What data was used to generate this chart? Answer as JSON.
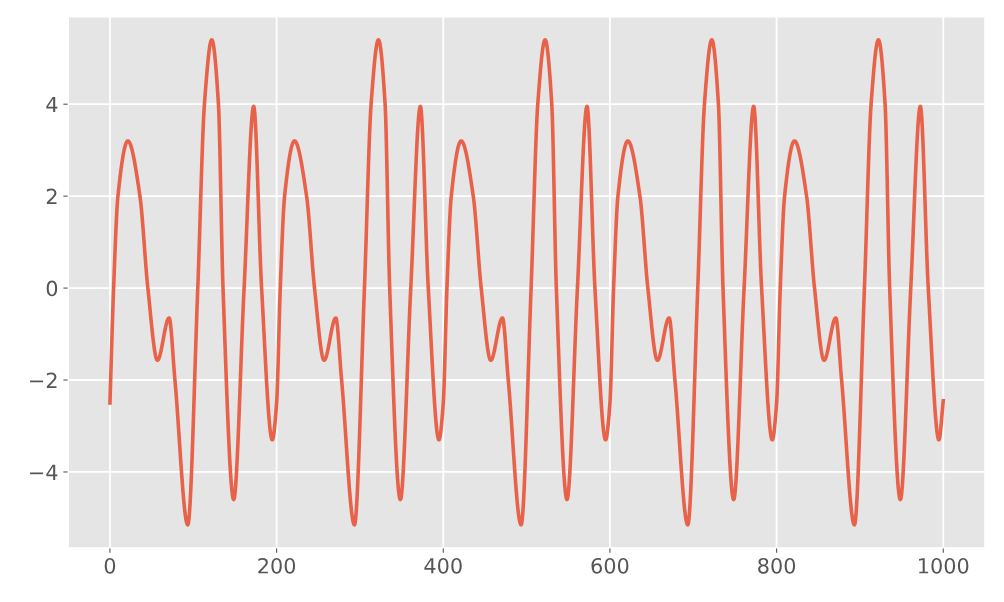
{
  "chart_data": {
    "type": "line",
    "x": [
      0,
      4.4,
      9.6,
      21.5,
      36,
      45.5,
      57,
      71,
      78,
      93.4,
      105.4,
      113.4,
      122.2,
      130.2,
      135.7,
      148.5,
      161,
      172.5,
      182,
      194.8,
      200,
      204.4,
      209.6,
      221.5,
      236,
      245.5,
      257,
      271,
      278,
      293.4,
      305.4,
      313.4,
      322.2,
      330.2,
      335.7,
      348.5,
      361,
      372.5,
      382,
      394.8,
      400,
      404.4,
      409.6,
      421.5,
      436,
      445.5,
      457,
      471,
      478,
      493.4,
      505.4,
      513.4,
      522.2,
      530.2,
      535.7,
      548.5,
      561,
      572.5,
      582,
      594.8,
      600,
      604.4,
      609.6,
      621.5,
      636,
      645.5,
      657,
      671,
      678,
      693.4,
      705.4,
      713.4,
      722.2,
      730.2,
      735.7,
      748.5,
      761,
      772.5,
      782,
      794.8,
      800,
      804.4,
      809.6,
      821.5,
      836,
      845.5,
      857,
      871,
      878,
      893.4,
      905.4,
      913.4,
      922.2,
      930.2,
      935.7,
      948.5,
      961,
      972.5,
      982,
      994.8,
      1000
    ],
    "series": [
      {
        "color": "#e8624a",
        "values": [
          -2.5,
          0,
          2,
          3.2,
          2,
          0,
          -1.57,
          -0.65,
          -2,
          -5.15,
          0,
          4,
          5.4,
          4,
          0,
          -4.6,
          0,
          3.95,
          0,
          -3.3,
          -2.5,
          0,
          2,
          3.2,
          2,
          0,
          -1.57,
          -0.65,
          -2,
          -5.15,
          0,
          4,
          5.4,
          4,
          0,
          -4.6,
          0,
          3.95,
          0,
          -3.3,
          -2.5,
          0,
          2,
          3.2,
          2,
          0,
          -1.57,
          -0.65,
          -2,
          -5.15,
          0,
          4,
          5.4,
          4,
          0,
          -4.6,
          0,
          3.95,
          0,
          -3.3,
          -2.5,
          0,
          2,
          3.2,
          2,
          0,
          -1.57,
          -0.65,
          -2,
          -5.15,
          0,
          4,
          5.4,
          4,
          0,
          -4.6,
          0,
          3.95,
          0,
          -3.3,
          -2.5,
          0,
          2,
          3.2,
          2,
          0,
          -1.57,
          -0.65,
          -2,
          -5.15,
          0,
          4,
          5.4,
          4,
          0,
          -4.6,
          0,
          3.95,
          0,
          -3.3,
          -2.45
        ]
      }
    ],
    "xlim": [
      -50,
      1050
    ],
    "ylim": [
      -5.65,
      5.9
    ],
    "xticks": [
      0,
      200,
      400,
      600,
      800,
      1000
    ],
    "yticks": [
      {
        "value": -4,
        "label": "−4"
      },
      {
        "value": -2,
        "label": "−2"
      },
      0,
      2,
      4
    ],
    "grid": true,
    "legend": false
  }
}
